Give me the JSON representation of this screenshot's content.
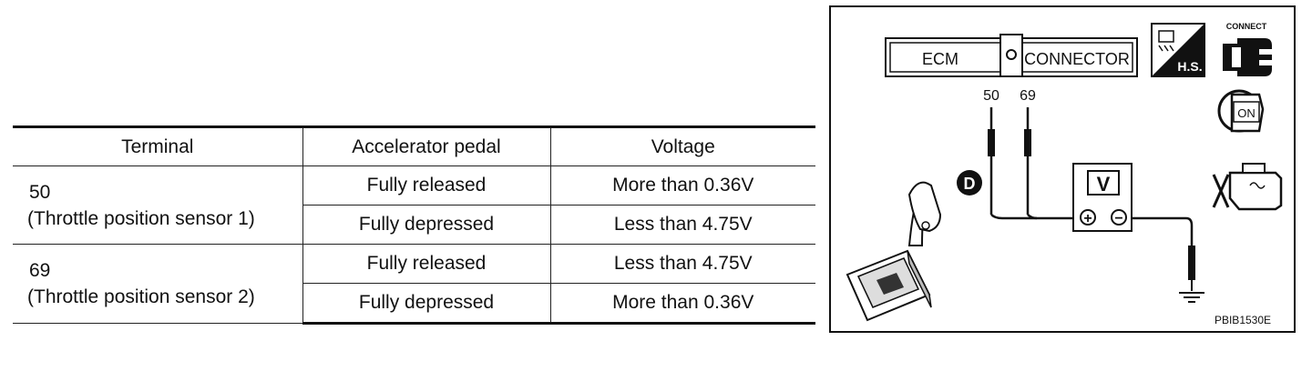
{
  "table": {
    "headers": [
      "Terminal",
      "Accelerator pedal",
      "Voltage"
    ],
    "rows": [
      {
        "terminal": "50",
        "terminal_name": "(Throttle position sensor 1)",
        "conditions": [
          {
            "pedal": "Fully released",
            "voltage": "More than 0.36V"
          },
          {
            "pedal": "Fully depressed",
            "voltage": "Less than 4.75V"
          }
        ]
      },
      {
        "terminal": "69",
        "terminal_name": " (Throttle position sensor 2)",
        "conditions": [
          {
            "pedal": "Fully released",
            "voltage": "Less than 4.75V"
          },
          {
            "pedal": "Fully depressed",
            "voltage": "More than 0.36V"
          }
        ]
      }
    ]
  },
  "diagram": {
    "connector_left_label": "ECM",
    "connector_right_label": "CONNECTOR",
    "pin_a": "50",
    "pin_b": "69",
    "meter_label": "V",
    "meter_plus": "+",
    "meter_minus": "−",
    "gear_label": "D",
    "hs_label": "H.S.",
    "connect_label": "CONNECT",
    "ignition_label": "ON",
    "figure_code": "PBIB1530E",
    "colors": {
      "line": "#111111",
      "fill": "#ffffff"
    }
  }
}
